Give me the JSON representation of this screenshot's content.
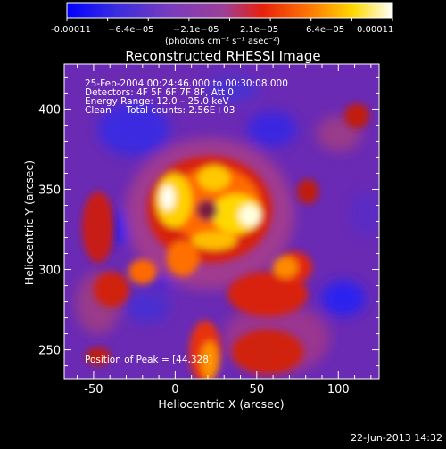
{
  "colorbar": {
    "tick_labels": [
      "-0.00011",
      "−6.4e−05",
      "−2.1e−05",
      "2.1e−05",
      "6.4e−05",
      "0.00011"
    ],
    "unit_label": "(photons cm⁻² s⁻¹ asec⁻²)",
    "range": [
      -0.00011,
      0.00011
    ],
    "colormap": [
      "#0000ff",
      "#4b2ad8",
      "#7d3fb8",
      "#b24a8a",
      "#e83a1a",
      "#ff8a00",
      "#ffe000",
      "#ffffff"
    ]
  },
  "chart_data": {
    "type": "heatmap",
    "title": "Reconstructed RHESSI Image",
    "xlabel": "Heliocentric X (arcsec)",
    "ylabel": "Heliocentric Y (arcsec)",
    "xlim": [
      -68,
      125
    ],
    "ylim": [
      232,
      428
    ],
    "x_ticks": [
      -50,
      0,
      50,
      100
    ],
    "y_ticks": [
      250,
      300,
      350,
      400
    ],
    "annotations": [
      "25-Feb-2004 00:24:46.000 to 00:30:08.000",
      "Detectors: 4F 5F 6F 7F 8F, Att 0",
      "Energy Range: 12.0 – 25.0 keV",
      "Clean     Total counts: 2.56E+03"
    ],
    "peak_label": "Position of Peak = [44,328]",
    "peak": [
      44,
      328
    ]
  },
  "footer": {
    "timestamp": "22-Jun-2013 14:32"
  }
}
